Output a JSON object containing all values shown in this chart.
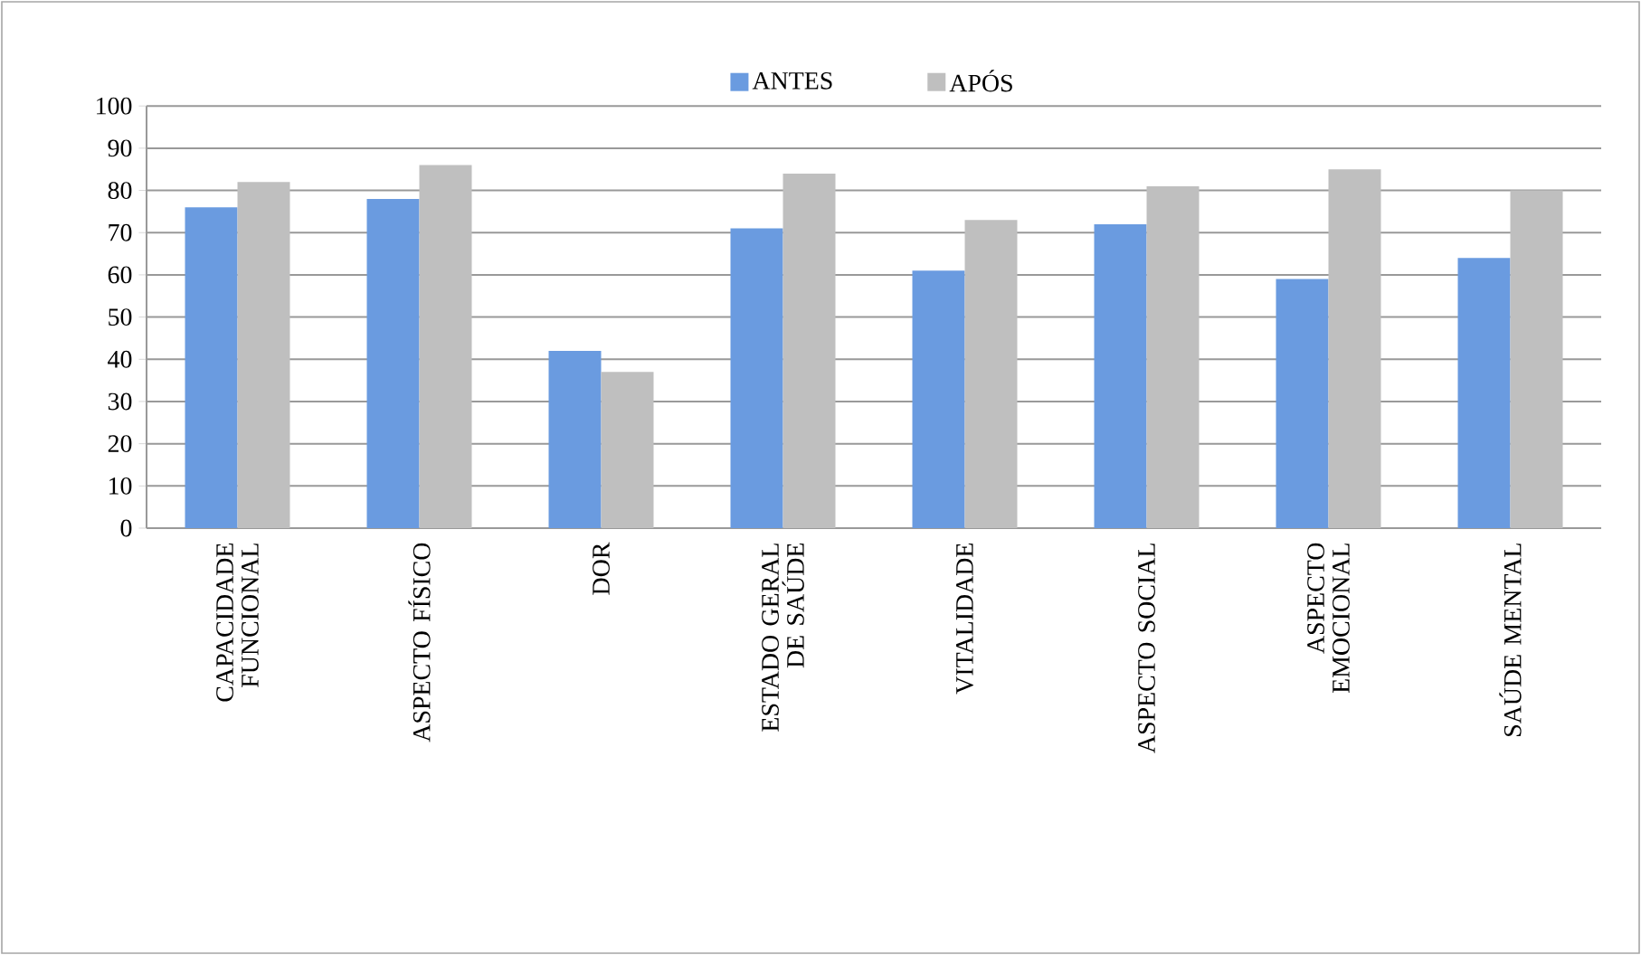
{
  "chart_data": {
    "type": "bar",
    "categories": [
      "CAPACIDADE FUNCIONAL",
      "ASPECTO FÍSICO",
      "DOR",
      "ESTADO GERAL DE SAÚDE",
      "VITALIDADE",
      "ASPECTO SOCIAL",
      "ASPECTO EMOCIONAL",
      "SAÚDE MENTAL"
    ],
    "series": [
      {
        "name": "ANTES",
        "color": "#6a9be0",
        "values": [
          76,
          78,
          42,
          71,
          61,
          72,
          59,
          64
        ]
      },
      {
        "name": "APÓS",
        "color": "#bfbfbf",
        "values": [
          82,
          86,
          37,
          84,
          73,
          81,
          85,
          80
        ]
      }
    ],
    "ylim": [
      0,
      100
    ],
    "yticks": [
      0,
      10,
      20,
      30,
      40,
      50,
      60,
      70,
      80,
      90,
      100
    ],
    "grid": "y",
    "legend": "top"
  }
}
